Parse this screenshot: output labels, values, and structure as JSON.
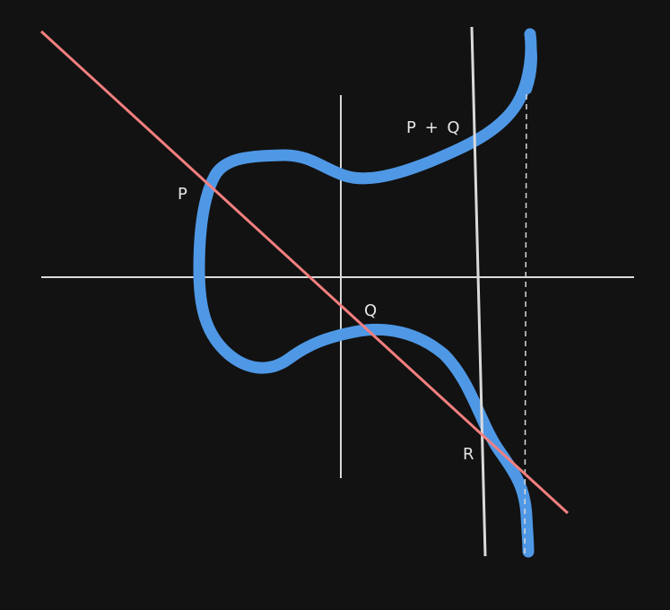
{
  "diagram": {
    "labels": {
      "p": "P",
      "q": "Q",
      "r": "R",
      "p_plus_q": "P + Q"
    },
    "colors": {
      "background": "#121212",
      "curve": "#4f98e6",
      "secant_line": "#f47f7f",
      "axes": "#d9d9d9",
      "text": "#e6e6e6"
    }
  }
}
